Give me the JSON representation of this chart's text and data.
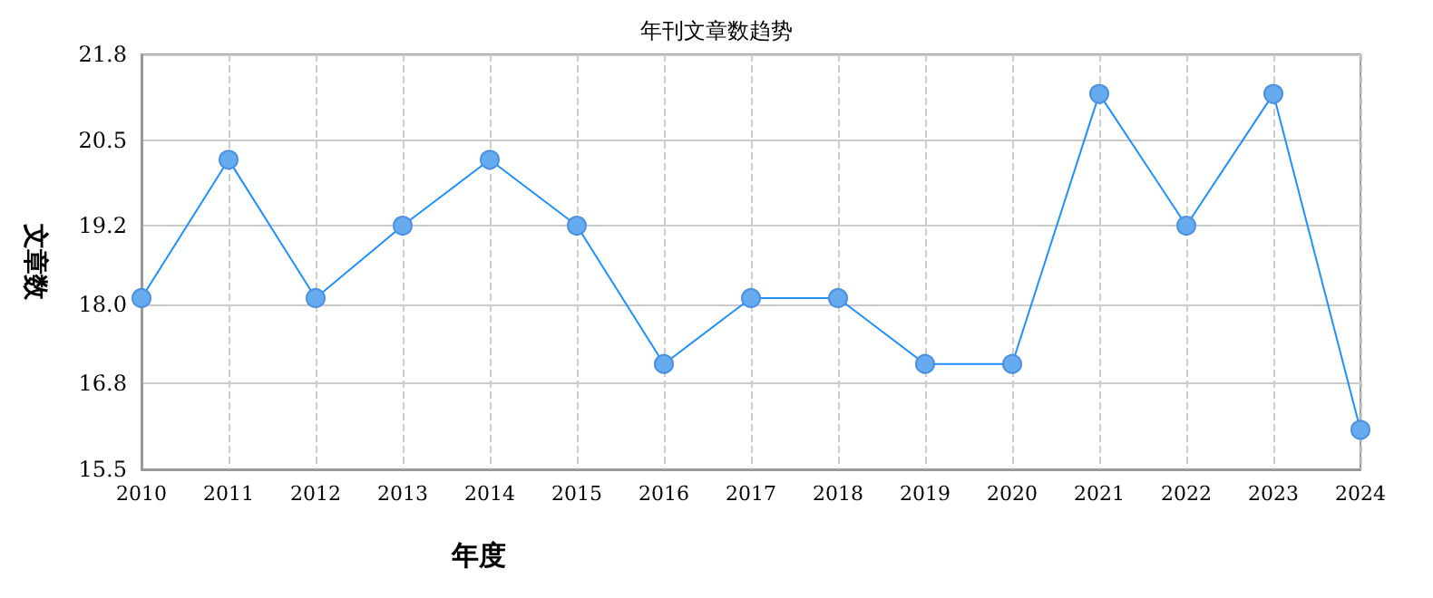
{
  "chart_data": {
    "type": "line",
    "title": "年刊文章数趋势",
    "xlabel": "年度",
    "ylabel": "文章数",
    "categories": [
      "2010",
      "2011",
      "2012",
      "2013",
      "2014",
      "2015",
      "2016",
      "2017",
      "2018",
      "2019",
      "2020",
      "2021",
      "2022",
      "2023",
      "2024"
    ],
    "series": [
      {
        "color": "#1e90ff",
        "values": [
          18.1,
          20.2,
          18.1,
          19.2,
          20.2,
          19.2,
          17.1,
          18.1,
          18.1,
          17.1,
          17.1,
          21.2,
          19.2,
          21.2,
          16.1
        ]
      }
    ],
    "ylim": [
      15.5,
      21.8
    ],
    "yticks": [
      15.5,
      16.8,
      {
        "value": 18,
        "label": "18.0"
      },
      19.2,
      20.5,
      21.8
    ],
    "grid": true,
    "marker": "circle",
    "line_style": "solid"
  }
}
